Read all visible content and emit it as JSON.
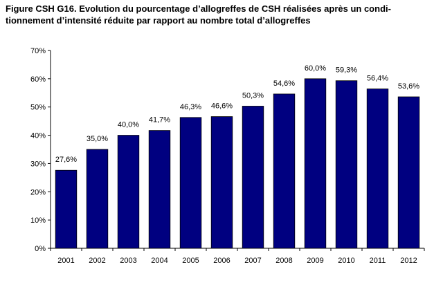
{
  "figure_title": {
    "line1": "Figure CSH G16. Evolution du pourcentage d’allogreffes de CSH réalisées après un condi-",
    "line2": "tionnement d’intensité réduite par rapport au nombre total d’allogreffes"
  },
  "chart_data": {
    "type": "bar",
    "categories": [
      "2001",
      "2002",
      "2003",
      "2004",
      "2005",
      "2006",
      "2007",
      "2008",
      "2009",
      "2010",
      "2011",
      "2012"
    ],
    "values": [
      27.6,
      35.0,
      40.0,
      41.7,
      46.3,
      46.6,
      50.3,
      54.6,
      60.0,
      59.3,
      56.4,
      53.6
    ],
    "data_labels": [
      "27,6%",
      "35,0%",
      "40,0%",
      "41,7%",
      "46,3%",
      "46,6%",
      "50,3%",
      "54,6%",
      "60,0%",
      "59,3%",
      "56,4%",
      "53,6%"
    ],
    "y_ticks": [
      "0%",
      "10%",
      "20%",
      "30%",
      "40%",
      "50%",
      "60%",
      "70%"
    ],
    "ylim": [
      0,
      70
    ],
    "bar_color": "#000080",
    "grid": false,
    "legend": "none"
  }
}
